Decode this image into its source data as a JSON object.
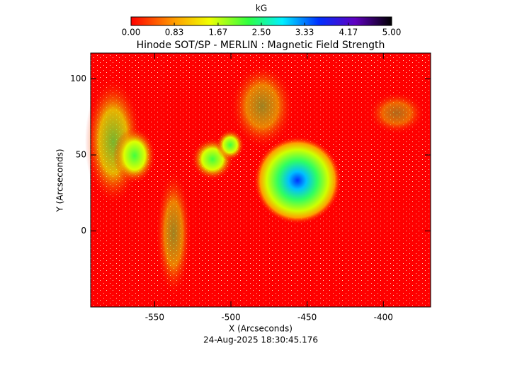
{
  "chart_data": {
    "type": "image",
    "title": "Hinode SOT/SP - MERLIN : Magnetic Field Strength",
    "xlabel": "X (Arcseconds)",
    "ylabel": "Y (Arcseconds)",
    "footer": "24-Aug-2025 18:30:45.176",
    "xlim": [
      -592,
      -369
    ],
    "ylim": [
      -50,
      117
    ],
    "xticks": [
      -550,
      -500,
      -450,
      -400
    ],
    "yticks": [
      0,
      50,
      100
    ],
    "colorbar": {
      "label": "kG",
      "lim": [
        0,
        5
      ],
      "ticks": [
        {
          "value": 0,
          "label": "0.00"
        },
        {
          "value": 0.83,
          "label": "0.83"
        },
        {
          "value": 1.67,
          "label": "1.67"
        },
        {
          "value": 2.5,
          "label": "2.50"
        },
        {
          "value": 3.33,
          "label": "3.33"
        },
        {
          "value": 4.17,
          "label": "4.17"
        },
        {
          "value": 5,
          "label": "5.00"
        }
      ]
    }
  }
}
